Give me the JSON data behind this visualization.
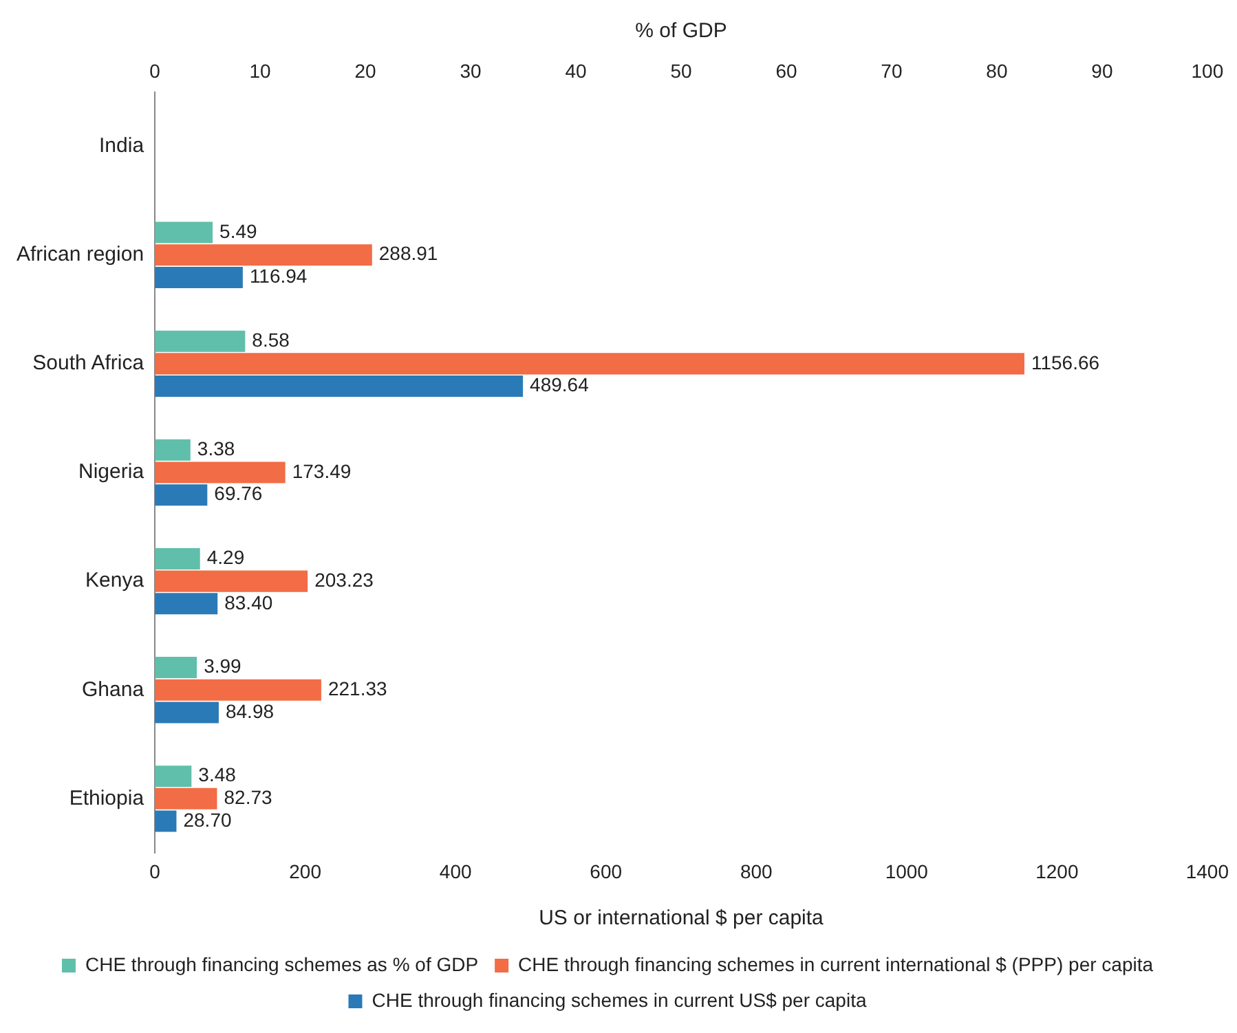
{
  "chart_data": {
    "type": "bar",
    "orientation": "horizontal",
    "xlabel": "US or international $ per capita",
    "x2label": "% of GDP",
    "categories": [
      "India",
      "African region",
      "South Africa",
      "Nigeria",
      "Kenya",
      "Ghana",
      "Ethiopia"
    ],
    "series": [
      {
        "name": "CHE through financing schemes as % of GDP",
        "color": "#5fbfaa",
        "axis": "x2",
        "values": [
          null,
          5.49,
          8.58,
          3.38,
          4.29,
          3.99,
          3.48
        ],
        "value_labels": [
          null,
          "5.49",
          "8.58",
          "3.38",
          "4.29",
          "3.99",
          "3.48"
        ]
      },
      {
        "name": "CHE through financing schemes in current international $ (PPP) per capita",
        "color": "#f26c45",
        "values": [
          null,
          288.91,
          1156.66,
          173.49,
          203.23,
          221.33,
          82.73
        ],
        "value_labels": [
          null,
          "288.91",
          "1156.66",
          "173.49",
          "203.23",
          "221.33",
          "82.73"
        ]
      },
      {
        "name": "CHE through financing schemes in current US$ per capita",
        "color": "#2a7ab8",
        "values": [
          null,
          116.94,
          489.64,
          69.76,
          83.4,
          84.98,
          28.7
        ],
        "value_labels": [
          null,
          "116.94",
          "489.64",
          "69.76",
          "83.40",
          "84.98",
          "28.70"
        ]
      }
    ],
    "xlim": [
      0,
      1400
    ],
    "xticks": [
      0,
      200,
      400,
      600,
      800,
      1000,
      1200,
      1400
    ],
    "x2lim": [
      0,
      100
    ],
    "x2ticks": [
      0,
      10,
      20,
      30,
      40,
      50,
      60,
      70,
      80,
      90,
      100
    ],
    "grid": false,
    "legend": "bottom"
  }
}
